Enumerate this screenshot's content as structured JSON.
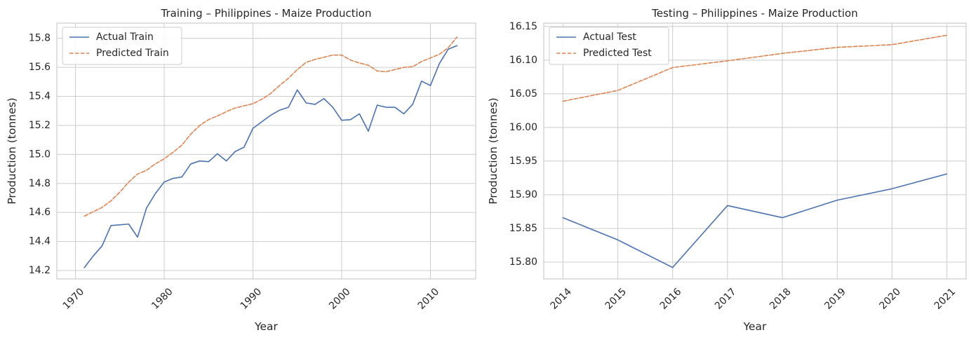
{
  "colors": {
    "actual": "#4c72b0",
    "predicted": "#dd8452"
  },
  "chart_data": [
    {
      "type": "line",
      "title": "Training – Philippines - Maize Production",
      "xlabel": "Year",
      "ylabel": "Production (tonnes)",
      "xlim": [
        1967.9,
        2015.1
      ],
      "ylim": [
        14.142,
        15.905
      ],
      "xticks": [
        1970,
        1980,
        1990,
        2000,
        2010
      ],
      "xtick_labels": [
        "1970",
        "1980",
        "1990",
        "2000",
        "2010"
      ],
      "yticks": [
        14.2,
        14.4,
        14.6,
        14.8,
        15.0,
        15.2,
        15.4,
        15.6,
        15.8
      ],
      "ytick_labels": [
        "14.2",
        "14.4",
        "14.6",
        "14.8",
        "15.0",
        "15.2",
        "15.4",
        "15.6",
        "15.8"
      ],
      "grid": true,
      "legend_position": "upper-left",
      "x": [
        1971,
        1972,
        1973,
        1974,
        1975,
        1976,
        1977,
        1978,
        1979,
        1980,
        1981,
        1982,
        1983,
        1984,
        1985,
        1986,
        1987,
        1988,
        1989,
        1990,
        1991,
        1992,
        1993,
        1994,
        1995,
        1996,
        1997,
        1998,
        1999,
        2000,
        2001,
        2002,
        2003,
        2004,
        2005,
        2006,
        2007,
        2008,
        2009,
        2010,
        2011,
        2012,
        2013
      ],
      "series": [
        {
          "name": "Actual Train",
          "style": "solid",
          "values": [
            14.22,
            14.3,
            14.37,
            14.51,
            14.515,
            14.52,
            14.43,
            14.63,
            14.73,
            14.81,
            14.835,
            14.845,
            14.935,
            14.955,
            14.95,
            15.005,
            14.955,
            15.02,
            15.05,
            15.18,
            15.225,
            15.27,
            15.305,
            15.325,
            15.445,
            15.355,
            15.345,
            15.385,
            15.325,
            15.235,
            15.24,
            15.28,
            15.16,
            15.34,
            15.325,
            15.325,
            15.28,
            15.345,
            15.505,
            15.475,
            15.625,
            15.725,
            15.75
          ]
        },
        {
          "name": "Predicted Train",
          "style": "dashed",
          "values": [
            14.575,
            14.605,
            14.635,
            14.68,
            14.74,
            14.81,
            14.865,
            14.89,
            14.935,
            14.97,
            15.015,
            15.065,
            15.14,
            15.2,
            15.24,
            15.265,
            15.295,
            15.32,
            15.335,
            15.35,
            15.38,
            15.42,
            15.475,
            15.525,
            15.585,
            15.635,
            15.655,
            15.67,
            15.685,
            15.685,
            15.65,
            15.63,
            15.615,
            15.575,
            15.57,
            15.585,
            15.6,
            15.605,
            15.64,
            15.665,
            15.69,
            15.735,
            15.81
          ]
        }
      ]
    },
    {
      "type": "line",
      "title": "Testing – Philippines - Maize Production",
      "xlabel": "Year",
      "ylabel": "Production (tonnes)",
      "xlim": [
        2013.65,
        2021.35
      ],
      "ylim": [
        15.775,
        16.155
      ],
      "xticks": [
        2014,
        2015,
        2016,
        2017,
        2018,
        2019,
        2020,
        2021
      ],
      "xtick_labels": [
        "2014",
        "2015",
        "2016",
        "2017",
        "2018",
        "2019",
        "2020",
        "2021"
      ],
      "yticks": [
        15.8,
        15.85,
        15.9,
        15.95,
        16.0,
        16.05,
        16.1,
        16.15
      ],
      "ytick_labels": [
        "15.80",
        "15.85",
        "15.90",
        "15.95",
        "16.00",
        "16.05",
        "16.10",
        "16.15"
      ],
      "grid": true,
      "legend_position": "upper-left",
      "x": [
        2014,
        2015,
        2016,
        2017,
        2018,
        2019,
        2020,
        2021
      ],
      "series": [
        {
          "name": "Actual Test",
          "style": "solid",
          "values": [
            15.866,
            15.833,
            15.792,
            15.884,
            15.866,
            15.892,
            15.909,
            15.931
          ]
        },
        {
          "name": "Predicted Test",
          "style": "dashed",
          "values": [
            16.039,
            16.055,
            16.089,
            16.099,
            16.11,
            16.119,
            16.123,
            16.137
          ]
        }
      ]
    }
  ]
}
